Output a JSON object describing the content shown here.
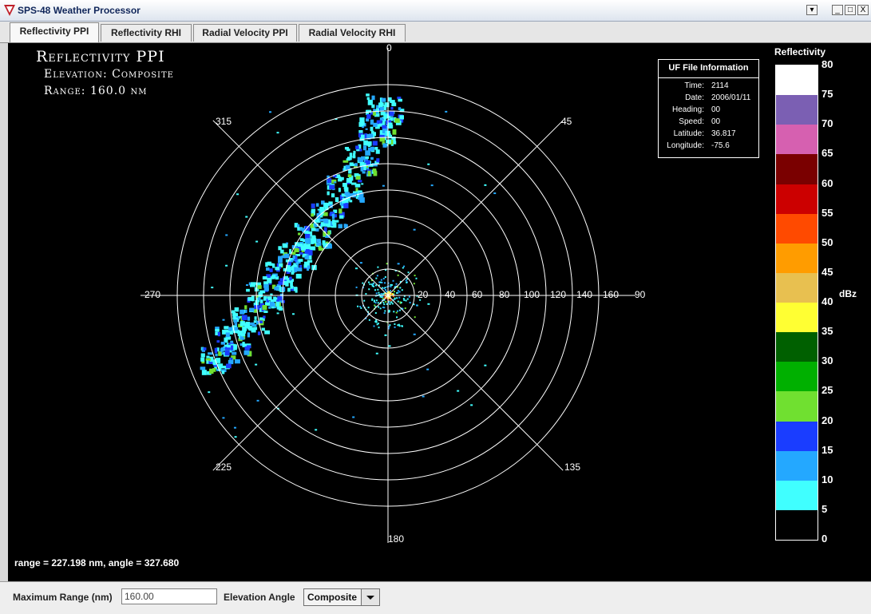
{
  "window": {
    "title": "SPS-48 Weather Processor",
    "controls": [
      "_",
      "□",
      "X"
    ],
    "menu_glyph": "▾"
  },
  "tabs": [
    {
      "label": "Reflectivity PPI",
      "active": true
    },
    {
      "label": "Reflectivity RHI",
      "active": false
    },
    {
      "label": "Radial Velocity PPI",
      "active": false
    },
    {
      "label": "Radial Velocity RHI",
      "active": false
    }
  ],
  "display": {
    "title": "Reflectivity PPI",
    "elevation": "Elevation: Composite",
    "range": "Range: 160.0 nm",
    "readout": "range = 227.198 nm,   angle = 327.680"
  },
  "ppi": {
    "max_range_nm": 160,
    "ring_labels": [
      "20",
      "40",
      "60",
      "80",
      "100",
      "120",
      "140",
      "160"
    ],
    "azimuth_labels": {
      "n": "0",
      "ne": "45",
      "e": "90",
      "se": "135",
      "s": "180",
      "sw": "225",
      "w": "270",
      "nw": "315"
    }
  },
  "uf_info": {
    "title": "UF File Information",
    "rows": [
      {
        "key": "Time:",
        "value": "2114"
      },
      {
        "key": "Date:",
        "value": "2006/01/11"
      },
      {
        "key": "Heading:",
        "value": "00"
      },
      {
        "key": "Speed:",
        "value": "00"
      },
      {
        "key": "Latitude:",
        "value": "36.817"
      },
      {
        "key": "Longitude:",
        "value": "-75.6"
      }
    ]
  },
  "legend": {
    "title": "Reflectivity",
    "unit": "dBz",
    "ticks": [
      "80",
      "75",
      "70",
      "65",
      "60",
      "55",
      "50",
      "45",
      "40",
      "35",
      "30",
      "25",
      "20",
      "15",
      "10",
      "5",
      "0"
    ],
    "colors": [
      "#ffffff",
      "#7b5fb3",
      "#d660b0",
      "#7a0000",
      "#cc0000",
      "#ff4a00",
      "#ff9c00",
      "#e8c050",
      "#ffff33",
      "#006000",
      "#00b000",
      "#70e030",
      "#1a3dff",
      "#24a8ff",
      "#40ffff",
      "#000000"
    ]
  },
  "controls": {
    "max_range_label": "Maximum Range (nm)",
    "max_range_value": "160.00",
    "elevation_label": "Elevation Angle",
    "elevation_value": "Composite"
  }
}
